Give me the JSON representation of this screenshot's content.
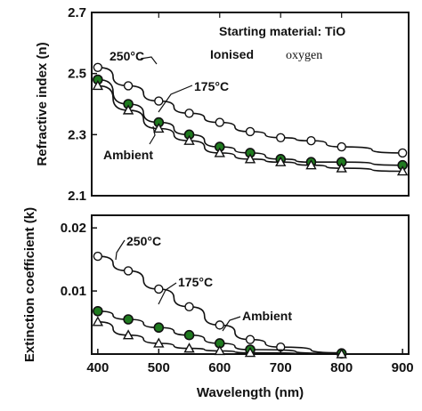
{
  "chart_data": [
    {
      "type": "line",
      "ylabel": "Refractive index (n)",
      "xlabel": "",
      "xlim": [
        400,
        900
      ],
      "ylim": [
        2.1,
        2.7
      ],
      "yticks": [
        "2.1",
        "2.3",
        "2.5",
        "2.7"
      ],
      "header_lines": [
        "Starting material: TiO",
        "Ionised oxygen"
      ],
      "series": [
        {
          "name": "250°C",
          "marker": "open-circle",
          "x": [
            400,
            450,
            500,
            550,
            600,
            650,
            700,
            750,
            800,
            900
          ],
          "values": [
            2.52,
            2.46,
            2.41,
            2.37,
            2.34,
            2.31,
            2.29,
            2.28,
            2.26,
            2.24
          ]
        },
        {
          "name": "175°C",
          "marker": "filled-circle",
          "x": [
            400,
            450,
            500,
            550,
            600,
            650,
            700,
            750,
            800,
            900
          ],
          "values": [
            2.48,
            2.4,
            2.34,
            2.3,
            2.26,
            2.24,
            2.22,
            2.21,
            2.21,
            2.2
          ]
        },
        {
          "name": "Ambient",
          "marker": "open-triangle",
          "x": [
            400,
            450,
            500,
            550,
            600,
            650,
            700,
            750,
            800,
            900
          ],
          "values": [
            2.46,
            2.38,
            2.32,
            2.28,
            2.24,
            2.22,
            2.21,
            2.2,
            2.19,
            2.18
          ]
        }
      ],
      "labels": {
        "s250": "250°C",
        "s175": "175°C",
        "ambient": "Ambient",
        "header1": "Starting material: TiO",
        "header2a": "Ionised",
        "header2b": "oxygen"
      }
    },
    {
      "type": "line",
      "ylabel": "Extinction coefficient (k)",
      "xlabel": "Wavelength (nm)",
      "xlim": [
        400,
        900
      ],
      "ylim": [
        0.0,
        0.022
      ],
      "xticks": [
        "400",
        "500",
        "600",
        "700",
        "800",
        "900"
      ],
      "yticks": [
        "0.01",
        "0.02"
      ],
      "series": [
        {
          "name": "250°C",
          "marker": "open-circle",
          "x": [
            400,
            450,
            500,
            550,
            600,
            650,
            700,
            800
          ],
          "values": [
            0.0155,
            0.0132,
            0.0103,
            0.0075,
            0.0046,
            0.0023,
            0.0011,
            0.0002
          ]
        },
        {
          "name": "175°C",
          "marker": "filled-circle",
          "x": [
            400,
            450,
            500,
            550,
            600,
            650,
            800
          ],
          "values": [
            0.0068,
            0.0055,
            0.0042,
            0.003,
            0.0017,
            0.0007,
            0.0001
          ]
        },
        {
          "name": "Ambient",
          "marker": "open-triangle",
          "x": [
            400,
            450,
            500,
            550,
            600,
            650,
            800
          ],
          "values": [
            0.0051,
            0.003,
            0.0017,
            0.0009,
            0.0005,
            0.0002,
            0.0
          ]
        }
      ],
      "labels": {
        "s250": "250°C",
        "s175": "175°C",
        "ambient": "Ambient"
      }
    }
  ]
}
